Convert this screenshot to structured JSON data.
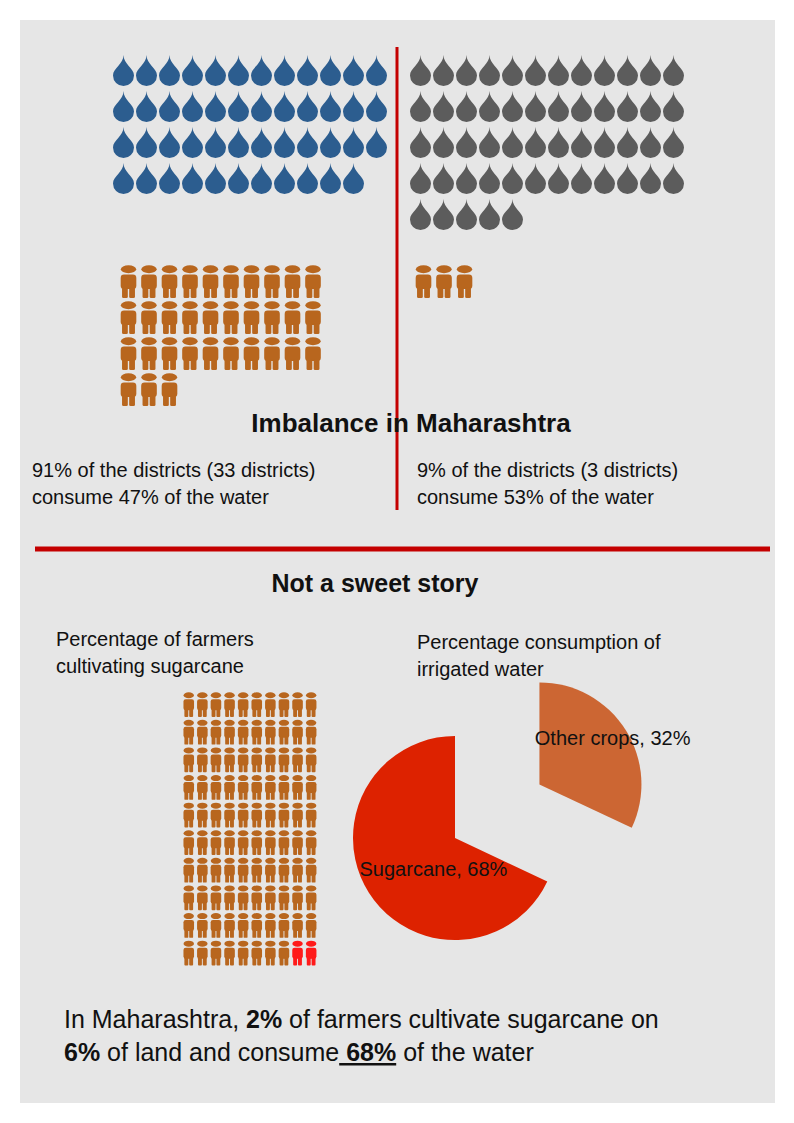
{
  "imbalance": {
    "title": "Imbalance in Maharashtra",
    "groups": [
      {
        "caption": [
          "91% of the districts (33 districts)",
          "consume 47% of the water"
        ],
        "water_share": 47,
        "districts": 33,
        "color": "#2c5d8f"
      },
      {
        "caption": [
          "9% of the districts (3 districts)",
          "consume 53% of the water"
        ],
        "water_share": 53,
        "districts": 3,
        "color": "#5c5c5c"
      }
    ],
    "icon_color": "#b8661e"
  },
  "sugar": {
    "title": "Not a sweet story",
    "farmers": {
      "label": [
        "Percentage of farmers",
        "cultivating sugarcane"
      ],
      "total": 100,
      "sugarcane": 2,
      "color": "#b8661e",
      "highlight_color": "#ff1a1a"
    },
    "pie_label": [
      "Percentage consumption of",
      "irrigated water"
    ]
  },
  "chart_data": {
    "type": "pie",
    "categories": [
      "Sugarcane",
      "Other crops"
    ],
    "values": [
      68,
      32
    ],
    "colors": [
      "#dd2200",
      "#cc6633"
    ],
    "data_labels": true,
    "value_labels": [
      "Sugarcane, 68%",
      "Other crops, 32%"
    ]
  },
  "summary": [
    [
      {
        "text": "In Maharashtra, "
      },
      {
        "text": "2%",
        "bold": true
      },
      {
        "text": " of farmers cultivate sugarcane on"
      }
    ],
    [
      {
        "text": "6%",
        "bold": true
      },
      {
        "text": " of land and consume"
      },
      {
        "text": " 68%",
        "bold": true,
        "underline": true
      },
      {
        "text": " of the water"
      }
    ]
  ]
}
